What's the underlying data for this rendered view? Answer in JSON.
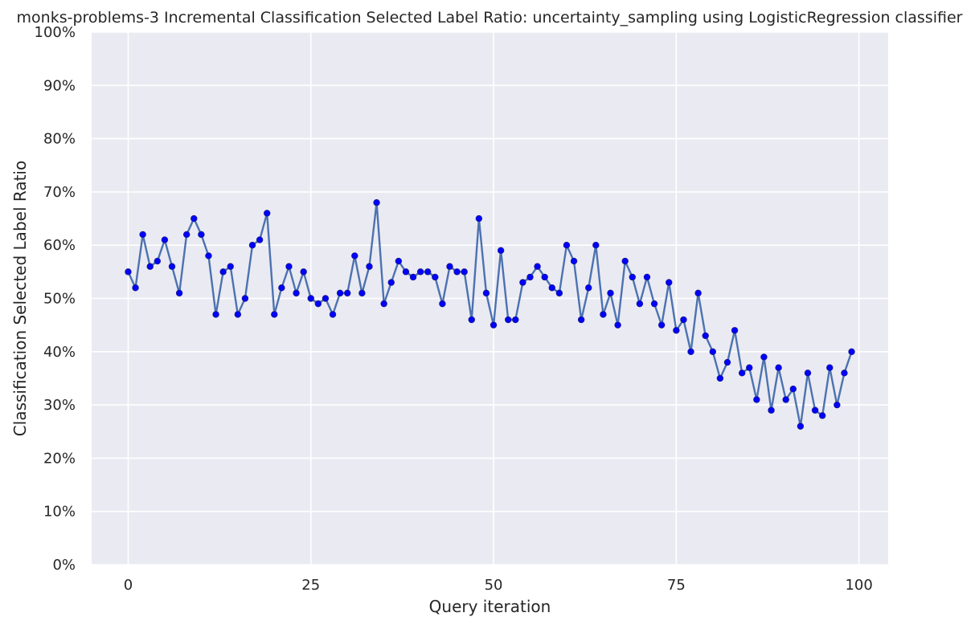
{
  "chart_data": {
    "type": "line",
    "title": "monks-problems-3 Incremental Classification Selected Label Ratio: uncertainty_sampling using LogisticRegression classifier",
    "xlabel": "Query iteration",
    "ylabel": "Classification Selected Label Ratio",
    "xlim": [
      -5,
      104
    ],
    "ylim": [
      0,
      1
    ],
    "x_ticks": [
      0,
      25,
      50,
      75,
      100
    ],
    "x_tick_labels": [
      "0",
      "25",
      "50",
      "75",
      "100"
    ],
    "y_ticks": [
      0,
      0.1,
      0.2,
      0.3,
      0.4,
      0.5,
      0.6,
      0.7,
      0.8,
      0.9,
      1.0
    ],
    "y_tick_labels": [
      "0%",
      "10%",
      "20%",
      "30%",
      "40%",
      "50%",
      "60%",
      "70%",
      "80%",
      "90%",
      "100%"
    ],
    "grid": true,
    "legend": false,
    "series": [
      {
        "x": [
          0,
          1,
          2,
          3,
          4,
          5,
          6,
          7,
          8,
          9,
          10,
          11,
          12,
          13,
          14,
          15,
          16,
          17,
          18,
          19,
          20,
          21,
          22,
          23,
          24,
          25,
          26,
          27,
          28,
          29,
          30,
          31,
          32,
          33,
          34,
          35,
          36,
          37,
          38,
          39,
          40,
          41,
          42,
          43,
          44,
          45,
          46,
          47,
          48,
          49,
          50,
          51,
          52,
          53,
          54,
          55,
          56,
          57,
          58,
          59,
          60,
          61,
          62,
          63,
          64,
          65,
          66,
          67,
          68,
          69,
          70,
          71,
          72,
          73,
          74,
          75,
          76,
          77,
          78,
          79,
          80,
          81,
          82,
          83,
          84,
          85,
          86,
          87,
          88,
          89,
          90,
          91,
          92,
          93,
          94,
          95,
          96,
          97,
          98,
          99
        ],
        "values": [
          0.55,
          0.52,
          0.62,
          0.56,
          0.57,
          0.61,
          0.56,
          0.51,
          0.62,
          0.65,
          0.62,
          0.58,
          0.47,
          0.55,
          0.56,
          0.47,
          0.5,
          0.6,
          0.61,
          0.66,
          0.47,
          0.52,
          0.56,
          0.51,
          0.55,
          0.5,
          0.49,
          0.5,
          0.47,
          0.51,
          0.51,
          0.58,
          0.51,
          0.56,
          0.68,
          0.49,
          0.53,
          0.57,
          0.55,
          0.54,
          0.55,
          0.55,
          0.54,
          0.49,
          0.56,
          0.55,
          0.55,
          0.46,
          0.65,
          0.51,
          0.45,
          0.59,
          0.46,
          0.46,
          0.53,
          0.54,
          0.56,
          0.54,
          0.52,
          0.51,
          0.6,
          0.57,
          0.46,
          0.52,
          0.6,
          0.47,
          0.51,
          0.45,
          0.57,
          0.54,
          0.49,
          0.54,
          0.49,
          0.45,
          0.53,
          0.44,
          0.46,
          0.4,
          0.51,
          0.43,
          0.4,
          0.35,
          0.38,
          0.44,
          0.36,
          0.37,
          0.31,
          0.39,
          0.29,
          0.37,
          0.31,
          0.33,
          0.26,
          0.36,
          0.29,
          0.28,
          0.37,
          0.3,
          0.36,
          0.4
        ],
        "line_color": "#4c72b0",
        "marker_color": "#0000ff"
      }
    ]
  },
  "colors": {
    "plot_background": "#eaeaf2",
    "grid": "#ffffff",
    "text": "#262626"
  }
}
